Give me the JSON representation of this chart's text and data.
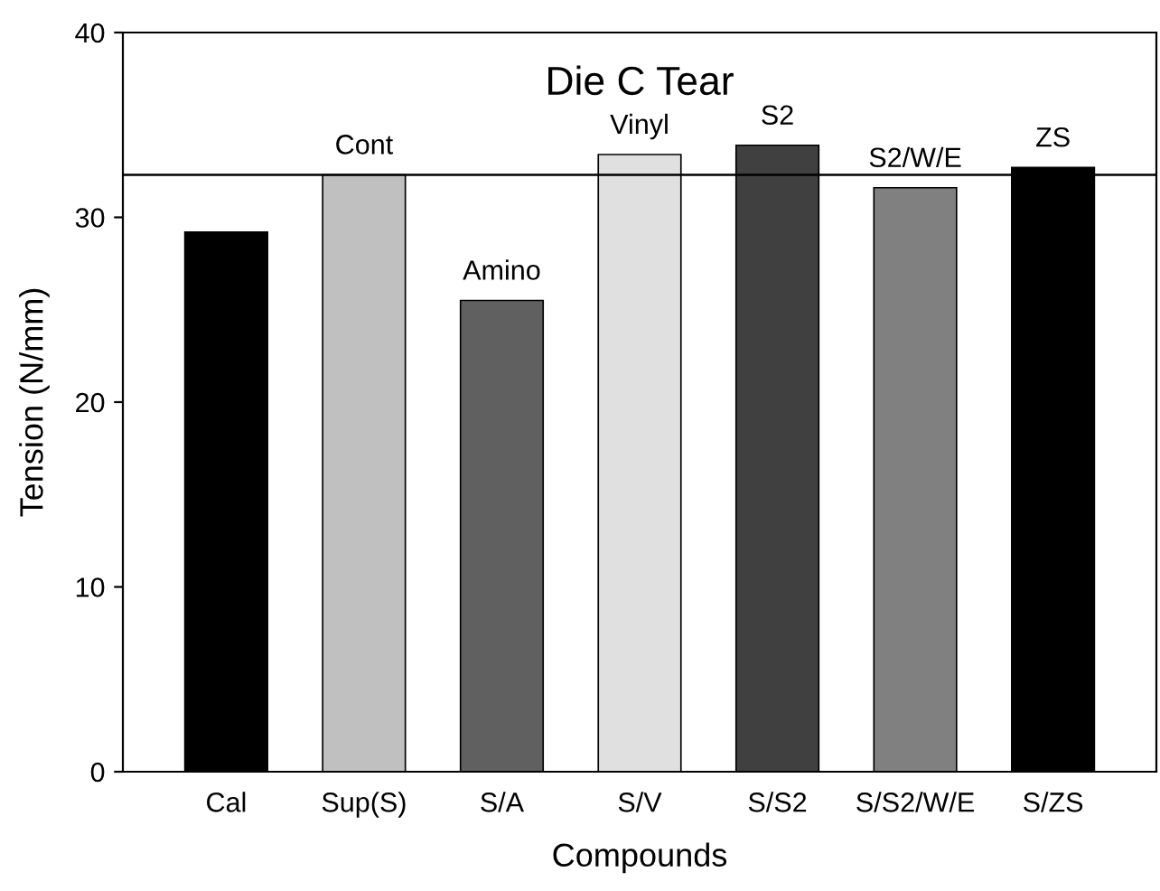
{
  "chart_data": {
    "type": "bar",
    "title": "Die C Tear",
    "xlabel": "Compounds",
    "ylabel": "Tension (N/mm)",
    "categories": [
      "Cal",
      "Sup(S)",
      "S/A",
      "S/V",
      "S/S2",
      "S/S2/W/E",
      "S/ZS"
    ],
    "values": [
      29.2,
      32.3,
      25.5,
      33.4,
      33.9,
      31.6,
      32.7
    ],
    "colors": [
      "#000000",
      "#c0c0c0",
      "#606060",
      "#e0e0e0",
      "#404040",
      "#808080",
      "#000000"
    ],
    "ylim": [
      0,
      40
    ],
    "yticks": [
      0,
      10,
      20,
      30,
      40
    ],
    "grid": false,
    "ref_lines": [
      {
        "axis": "y",
        "value": 32.3,
        "color": "#000000"
      }
    ],
    "annotations": [
      {
        "text": "Cont",
        "x": "Sup(S)",
        "y": 32.3
      },
      {
        "text": "Amino",
        "x": "S/A",
        "y": 25.5
      },
      {
        "text": "Vinyl",
        "x": "S/V",
        "y": 33.4
      },
      {
        "text": "S2",
        "x": "S/S2",
        "y": 33.9
      },
      {
        "text": "S2/W/E",
        "x": "S/S2/W/E",
        "y": 31.6
      },
      {
        "text": "ZS",
        "x": "S/ZS",
        "y": 32.7
      }
    ]
  }
}
